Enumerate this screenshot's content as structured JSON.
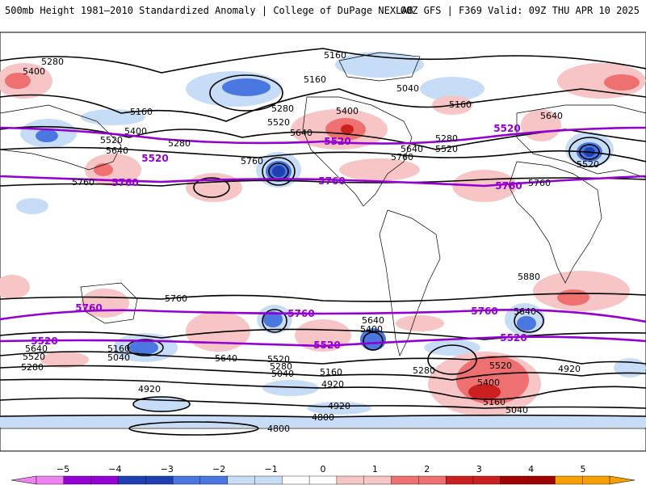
{
  "header": {
    "left": "500mb Height 1981–2010 Standardized Anomaly | College of DuPage NEXLAB",
    "right": "00Z GFS | F369 Valid: 09Z THU APR 10 2025"
  },
  "colors": {
    "neg5": "#ee82ee",
    "neg4": "#9400d3",
    "neg3": "#1e40b0",
    "neg2": "#4a78e0",
    "neg1": "#c7ddf7",
    "zero": "#ffffff",
    "pos1": "#f7c5c5",
    "pos2": "#ee7070",
    "pos3": "#cc1f1f",
    "pos4": "#a00000",
    "pos5": "#f5a000",
    "contour": "#000000",
    "highlight": "#9400d3"
  },
  "colorbar": {
    "ticks": [
      "−5",
      "−4",
      "−3",
      "−2",
      "−1",
      "0",
      "1",
      "2",
      "3",
      "4",
      "5"
    ]
  },
  "contour_labels": {
    "black": [
      "5280",
      "5400",
      "5160",
      "5160",
      "5040",
      "5160",
      "5280",
      "5400",
      "5520",
      "5640",
      "5160",
      "5400",
      "5520",
      "5640",
      "5280",
      "5640",
      "5760",
      "5520",
      "5280",
      "5640",
      "5760",
      "5760",
      "5760",
      "5880",
      "5640",
      "5760",
      "5640",
      "5400",
      "5520",
      "5640",
      "5520",
      "5280",
      "5160",
      "5040",
      "5640",
      "5520",
      "5280",
      "5040",
      "5160",
      "4920",
      "5280",
      "5520",
      "5400",
      "5160",
      "5040",
      "4920",
      "4920",
      "4800",
      "4920",
      "4800"
    ],
    "purple": [
      "5520",
      "5520",
      "5760",
      "5520",
      "5760",
      "5760",
      "5760",
      "5760",
      "5760",
      "5520",
      "5520",
      "5520"
    ]
  }
}
